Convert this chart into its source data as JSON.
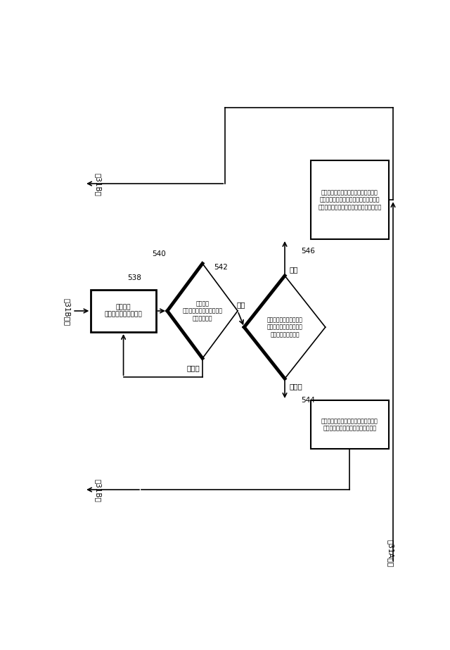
{
  "bg_color": "#ffffff",
  "node_538_label": "センサの\nライセンスキーを計算",
  "node_540_label": "ユーザが\nセンサのライセンスキーを\n入力したか？",
  "node_542_label": "ユーザが入力したキーは\nソフトウェアが計算した\nキーと一致するか？",
  "node_546_label": "バイタルサインモニタリング機能への\nアクセスができる状態にして、センサの\nシリアル番号を不揮発性メモリに格納する",
  "node_544_label": "入力されたセンサのライセンスキーが\n無効であることをユーザに通知する",
  "label_538": "538",
  "label_540": "540",
  "label_542": "542",
  "label_546": "546",
  "label_544": "544",
  "yes": "はい",
  "no": "いいえ",
  "from_31B": "図31Bから",
  "to_31B_top": "図31Bへ",
  "to_31B_bot": "図31Bへ",
  "from_31A": "図31Aから"
}
